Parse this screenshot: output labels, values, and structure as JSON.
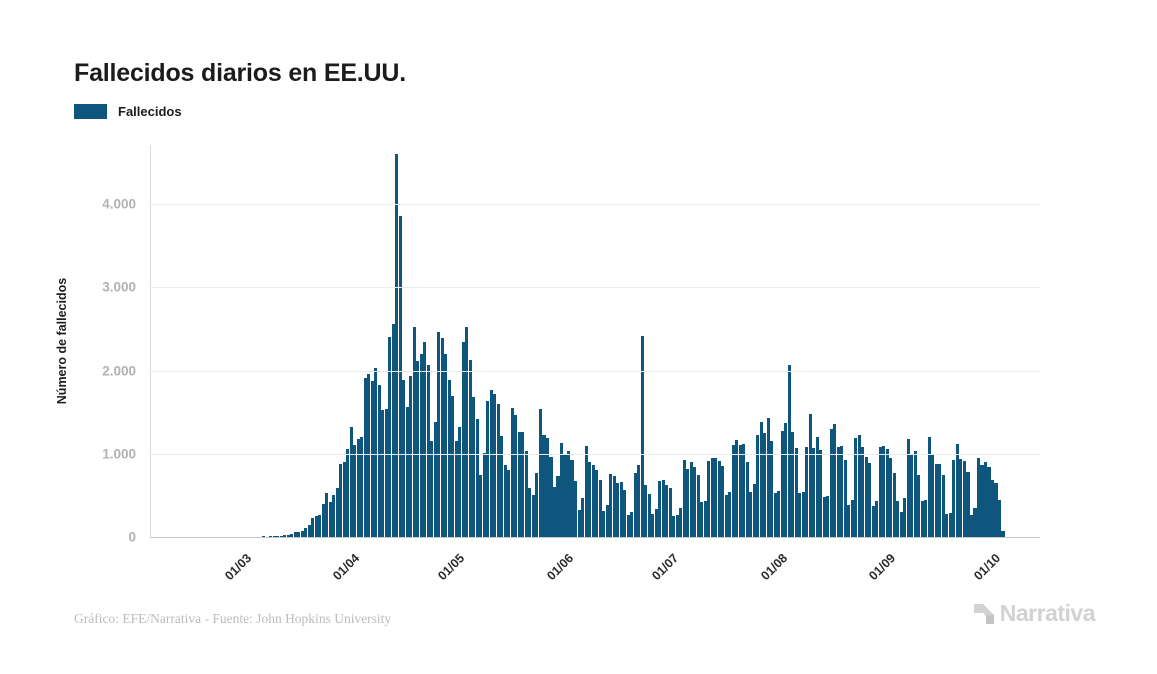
{
  "title": "Fallecidos diarios en EE.UU.",
  "legend": {
    "label": "Fallecidos",
    "color": "#0f567e"
  },
  "footer": {
    "credit": "Gráfico: EFE/Narrativa - Fuente: John Hopkins University",
    "brand": "Narrativa"
  },
  "colors": {
    "bar": "#0f567e",
    "title_text": "#1c1c1e",
    "ytick_text": "#b2b2b2",
    "xtick_text": "#2b2b2b",
    "gridline": "#ebebeb",
    "muted_text": "#bcbcbc",
    "brand_gray": "#d2d2d2"
  },
  "chart_data": {
    "type": "bar",
    "title": "Fallecidos diarios en EE.UU.",
    "xlabel": "",
    "ylabel": "Número de fallecidos",
    "legend_entries": [
      "Fallecidos"
    ],
    "bar_color": "#0f567e",
    "grid": true,
    "ylim": [
      0,
      4712
    ],
    "ytick_values": [
      0,
      1000,
      2000,
      3000,
      4000
    ],
    "ytick_labels": [
      "0",
      "1.000",
      "2.000",
      "3.000",
      "4.000"
    ],
    "xtick_labels": [
      "01/03",
      "01/04",
      "01/05",
      "01/06",
      "01/07",
      "01/08",
      "01/09",
      "01/10"
    ],
    "xtick_day_indices": [
      24,
      55,
      85,
      116,
      146,
      177,
      208,
      238
    ],
    "values": [
      0,
      0,
      0,
      0,
      0,
      0,
      0,
      0,
      0,
      0,
      1,
      0,
      1,
      1,
      1,
      1,
      2,
      1,
      2,
      2,
      2,
      3,
      3,
      4,
      1,
      4,
      6,
      4,
      3,
      6,
      4,
      5,
      7,
      6,
      8,
      11,
      12,
      17,
      24,
      27,
      40,
      57,
      60,
      70,
      110,
      140,
      225,
      247,
      268,
      401,
      525,
      420,
      500,
      590,
      880,
      900,
      1060,
      1320,
      1104,
      1180,
      1200,
      1906,
      1960,
      1873,
      2035,
      1830,
      1528,
      1535,
      2407,
      2560,
      4600,
      3860,
      1891,
      1561,
      1939,
      2524,
      2117,
      2201,
      2350,
      2065,
      1157,
      1384,
      2470,
      2390,
      2201,
      1883,
      1691,
      1154,
      1324,
      2350,
      2528,
      2129,
      1687,
      1422,
      750,
      1008,
      1630,
      1772,
      1715,
      1595,
      1218,
      865,
      808,
      1552,
      1461,
      1263,
      1260,
      1035,
      592,
      505,
      774,
      1535,
      1223,
      1193,
      960,
      605,
      730,
      1134,
      995,
      1036,
      921,
      669,
      326,
      473,
      1093,
      906,
      863,
      802,
      683,
      309,
      389,
      755,
      738,
      651,
      666,
      570,
      267,
      297,
      768,
      860,
      2420,
      621,
      512,
      271,
      335,
      672,
      684,
      627,
      594,
      254,
      270,
      351,
      930,
      813,
      905,
      847,
      741,
      419,
      433,
      917,
      944,
      953,
      908,
      858,
      510,
      547,
      1106,
      1166,
      1107,
      1113,
      906,
      547,
      635,
      1230,
      1380,
      1247,
      1435,
      1149,
      530,
      556,
      1276,
      1374,
      2070,
      1260,
      1067,
      524,
      541,
      1088,
      1481,
      1068,
      1207,
      1042,
      483,
      498,
      1297,
      1356,
      1082,
      1094,
      930,
      388,
      444,
      1193,
      1232,
      1087,
      963,
      888,
      367,
      428,
      1083,
      1090,
      1063,
      955,
      772,
      438,
      298,
      471,
      1180,
      981,
      1031,
      741,
      434,
      444,
      1202,
      980,
      872,
      880,
      740,
      271,
      290,
      927,
      1124,
      934,
      911,
      781,
      270,
      344,
      950,
      870,
      900,
      840,
      690,
      650,
      445,
      70
    ]
  }
}
